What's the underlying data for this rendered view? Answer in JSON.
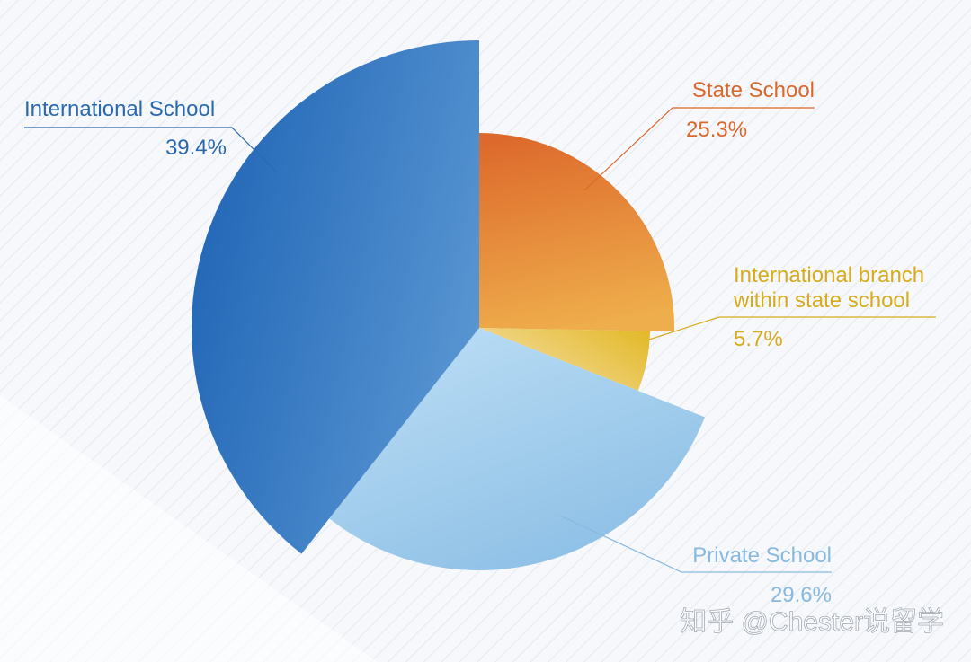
{
  "chart_data": {
    "type": "pie",
    "title": "",
    "slices": [
      {
        "label": "State School",
        "value": 25.3,
        "value_label": "25.3%",
        "color": "#dd6a2c",
        "color_light": "#efae4c"
      },
      {
        "label": "International branch within state school",
        "label_lines": [
          "International branch",
          "within state school"
        ],
        "value": 5.7,
        "value_label": "5.7%",
        "color": "#e2b824",
        "color_light": "#f4dca0"
      },
      {
        "label": "Private School",
        "value": 29.6,
        "value_label": "29.6%",
        "color": "#8ec0e6",
        "color_light": "#bfe0f6"
      },
      {
        "label": "International School",
        "value": 39.4,
        "value_label": "39.4%",
        "color": "#2166b6",
        "color_light": "#5a97d3"
      }
    ],
    "start_angle": "12 o'clock",
    "direction": "clockwise",
    "legend": "none (callout labels)"
  },
  "watermark": "知乎 @Chester说留学"
}
